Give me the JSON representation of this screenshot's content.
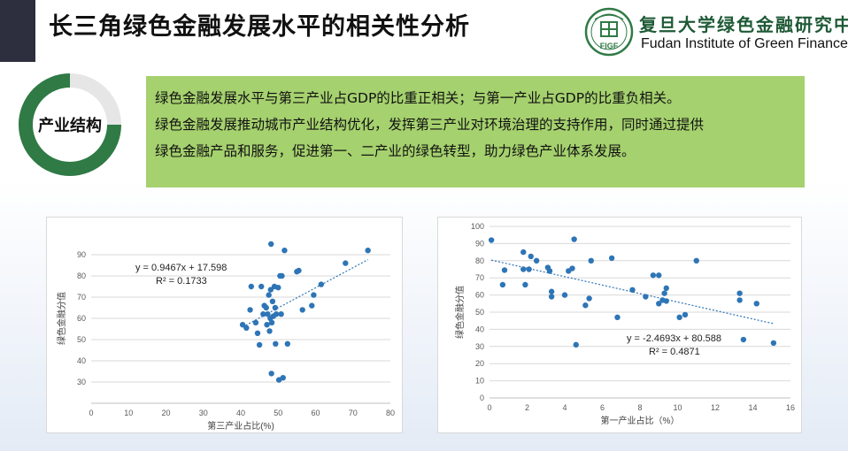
{
  "header": {
    "title": "长三角绿色金融发展水平的相关性分析",
    "logo_cn": "复旦大学绿色金融研究中心",
    "logo_en": "Fudan Institute of Green Finance",
    "logo_emblem_text": "FIGF"
  },
  "section": {
    "label": "产业结构",
    "accent_color": "#2f7a45"
  },
  "summary": {
    "line1": "绿色金融发展水平与第三产业占GDP的比重正相关；与第一产业占GDP的比重负相关。",
    "line2": "绿色金融发展推动城市产业结构优化，发挥第三产业对环境治理的支持作用，同时通过提供",
    "line3": "绿色金融产品和服务，促进第一、二产业的绿色转型，助力绿色产业体系发展。",
    "background_color": "#a5d16e"
  },
  "chart_data": [
    {
      "type": "scatter",
      "xlabel": "第三产业占比(%)",
      "ylabel": "绿色金融分值",
      "xlim": [
        0,
        80
      ],
      "ylim": [
        20,
        100
      ],
      "xticks": [
        0,
        10,
        20,
        30,
        40,
        50,
        60,
        70,
        80
      ],
      "yticks": [
        30,
        40,
        50,
        60,
        70,
        80,
        90
      ],
      "marker_color": "#2e75b6",
      "trendline": {
        "slope": 0.9467,
        "intercept": 17.598,
        "style": "dotted"
      },
      "equation": "y = 0.9467x + 17.598",
      "r2": "R² = 0.1733",
      "grid": "horizontal",
      "points": [
        [
          40.5,
          57
        ],
        [
          41.5,
          55.5
        ],
        [
          42.5,
          64
        ],
        [
          42.8,
          75
        ],
        [
          44,
          58
        ],
        [
          44.5,
          53
        ],
        [
          45,
          47.5
        ],
        [
          45.5,
          75
        ],
        [
          46,
          62
        ],
        [
          46.3,
          66
        ],
        [
          46.8,
          65
        ],
        [
          47,
          57
        ],
        [
          47.2,
          62
        ],
        [
          47.5,
          71
        ],
        [
          47.7,
          54
        ],
        [
          47.9,
          60
        ],
        [
          48,
          73.5
        ],
        [
          48.1,
          95
        ],
        [
          48.2,
          34
        ],
        [
          48.3,
          58
        ],
        [
          48.5,
          68
        ],
        [
          48.7,
          61
        ],
        [
          49,
          75
        ],
        [
          49.2,
          65
        ],
        [
          49.3,
          48
        ],
        [
          49.5,
          62
        ],
        [
          50,
          74.5
        ],
        [
          50.2,
          31
        ],
        [
          50.5,
          80
        ],
        [
          50.8,
          62
        ],
        [
          51,
          80
        ],
        [
          51.3,
          32
        ],
        [
          51.7,
          92
        ],
        [
          52.5,
          48
        ],
        [
          55,
          82
        ],
        [
          55.5,
          82.5
        ],
        [
          56.5,
          64
        ],
        [
          59,
          66
        ],
        [
          59.5,
          71
        ],
        [
          61.5,
          76
        ],
        [
          68,
          86
        ],
        [
          74,
          92
        ]
      ]
    },
    {
      "type": "scatter",
      "xlabel": "第一产业占比（%）",
      "ylabel": "绿色金融分值",
      "xlim": [
        0,
        16
      ],
      "ylim": [
        0,
        100
      ],
      "xticks": [
        0,
        2,
        4,
        6,
        8,
        10,
        12,
        14,
        16
      ],
      "yticks": [
        0,
        10,
        20,
        30,
        40,
        50,
        60,
        70,
        80,
        90,
        100
      ],
      "marker_color": "#2e75b6",
      "trendline": {
        "slope": -2.4693,
        "intercept": 80.588,
        "style": "dotted"
      },
      "equation": "y = -2.4693x + 80.588",
      "r2": "R² = 0.4871",
      "grid": "horizontal",
      "points": [
        [
          0.1,
          92
        ],
        [
          0.7,
          66
        ],
        [
          0.8,
          74.5
        ],
        [
          1.8,
          85
        ],
        [
          1.8,
          75
        ],
        [
          1.9,
          66
        ],
        [
          2.1,
          75
        ],
        [
          2.2,
          82.5
        ],
        [
          2.5,
          80
        ],
        [
          3.1,
          76
        ],
        [
          3.2,
          74
        ],
        [
          3.3,
          62
        ],
        [
          3.3,
          59
        ],
        [
          4,
          60
        ],
        [
          4.2,
          74
        ],
        [
          4.4,
          75.5
        ],
        [
          4.5,
          92.5
        ],
        [
          4.6,
          31
        ],
        [
          5.1,
          54
        ],
        [
          5.3,
          58
        ],
        [
          5.4,
          80
        ],
        [
          6.5,
          81.5
        ],
        [
          6.8,
          47
        ],
        [
          7.6,
          63
        ],
        [
          8.3,
          59
        ],
        [
          8.7,
          71.5
        ],
        [
          9,
          55
        ],
        [
          9,
          71.5
        ],
        [
          9.2,
          57
        ],
        [
          9.3,
          61
        ],
        [
          9.4,
          56.5
        ],
        [
          9.4,
          64
        ],
        [
          10.1,
          47
        ],
        [
          10.4,
          48.5
        ],
        [
          11,
          80
        ],
        [
          13.3,
          61
        ],
        [
          13.3,
          57
        ],
        [
          13.5,
          34
        ],
        [
          14.2,
          55
        ],
        [
          15.1,
          32
        ]
      ]
    }
  ]
}
